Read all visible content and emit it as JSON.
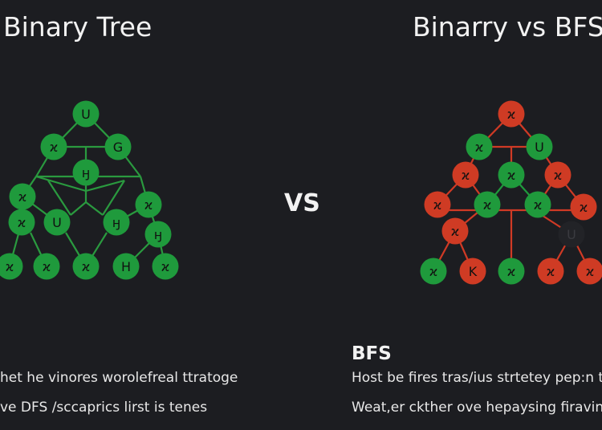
{
  "left_panel": {
    "title": "Binary Tree",
    "line1": "het he vinores worolefreal ttratoge",
    "line2": "ve DFS /sccaprics lirst is tenes",
    "edge_color": "#2a9a3f",
    "nodes": [
      {
        "label": "U",
        "color": "green"
      },
      {
        "label": "ϰ",
        "color": "green"
      },
      {
        "label": "G",
        "color": "green"
      },
      {
        "label": "ӈ",
        "color": "green"
      },
      {
        "label": "ϰ",
        "color": "green"
      },
      {
        "label": "ϰ",
        "color": "green"
      },
      {
        "label": "ϰ",
        "color": "green"
      },
      {
        "label": "U",
        "color": "green"
      },
      {
        "label": "ӈ",
        "color": "green"
      },
      {
        "label": "ӈ",
        "color": "green"
      },
      {
        "label": "ϰ",
        "color": "green"
      },
      {
        "label": "ϰ",
        "color": "green"
      },
      {
        "label": "ϰ",
        "color": "green"
      },
      {
        "label": "H",
        "color": "green"
      },
      {
        "label": "ϰ",
        "color": "green"
      }
    ]
  },
  "separator": "VS",
  "right_panel": {
    "title": "Binarry vs BFS",
    "heading": "BFS",
    "line1": "Host be fires tras/ius strtetey pep:n t",
    "line2": "Weat,er ckther ove hepaysing firavine",
    "edge_color": "#d03a25",
    "nodes": [
      {
        "label": "ϰ",
        "color": "red"
      },
      {
        "label": "ϰ",
        "color": "green"
      },
      {
        "label": "U",
        "color": "green"
      },
      {
        "label": "ϰ",
        "color": "green"
      },
      {
        "label": "ϰ",
        "color": "red"
      },
      {
        "label": "ϰ",
        "color": "red"
      },
      {
        "label": "ϰ",
        "color": "red"
      },
      {
        "label": "ϰ",
        "color": "green"
      },
      {
        "label": "ϰ",
        "color": "green"
      },
      {
        "label": "ϰ",
        "color": "red"
      },
      {
        "label": "ϰ",
        "color": "red"
      },
      {
        "label": "U",
        "color": "dark"
      },
      {
        "label": "ϰ",
        "color": "green"
      },
      {
        "label": "K",
        "color": "red"
      },
      {
        "label": "ϰ",
        "color": "green"
      },
      {
        "label": "ϰ",
        "color": "red"
      },
      {
        "label": "ϰ",
        "color": "red"
      }
    ]
  },
  "colors": {
    "green": "#1f9a3c",
    "red": "#cf3b24",
    "dark": "#222327",
    "background": "#1c1d21"
  }
}
